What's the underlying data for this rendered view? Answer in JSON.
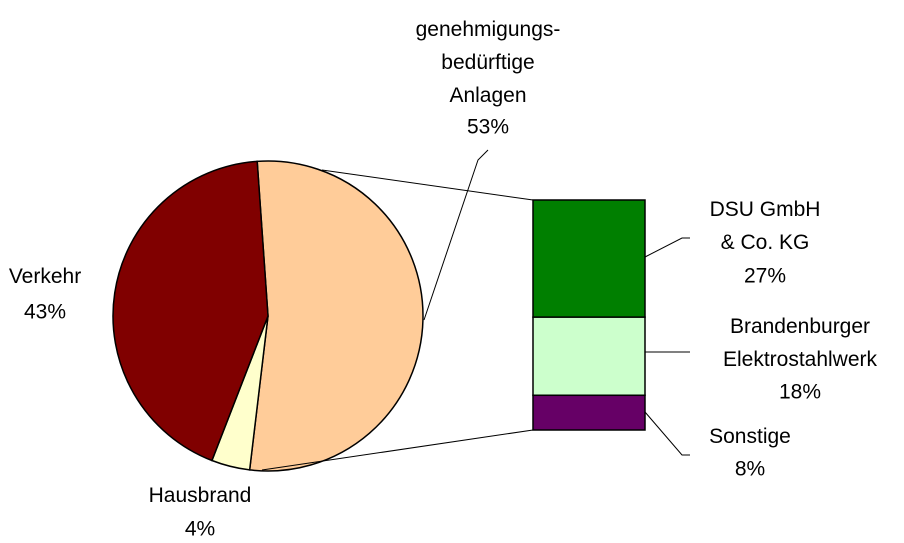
{
  "chart_data": {
    "type": "pie-of-bar",
    "pie": {
      "categories": [
        "genehmigungs-\nbedürftige\nAnlagen",
        "Hausbrand",
        "Verkehr"
      ],
      "values": [
        53,
        4,
        43
      ],
      "value_labels": [
        "53%",
        "4%",
        "43%"
      ],
      "colors": [
        "#ffcc99",
        "#ffffcc",
        "#800000"
      ]
    },
    "bar": {
      "categories": [
        "DSU GmbH\n& Co. KG",
        "Brandenburger\nElektrostahlwerk",
        "Sonstige"
      ],
      "values": [
        27,
        18,
        8
      ],
      "value_labels": [
        "27%",
        "18%",
        "8%"
      ],
      "colors": [
        "#007f00",
        "#ccffcc",
        "#660066"
      ]
    }
  }
}
